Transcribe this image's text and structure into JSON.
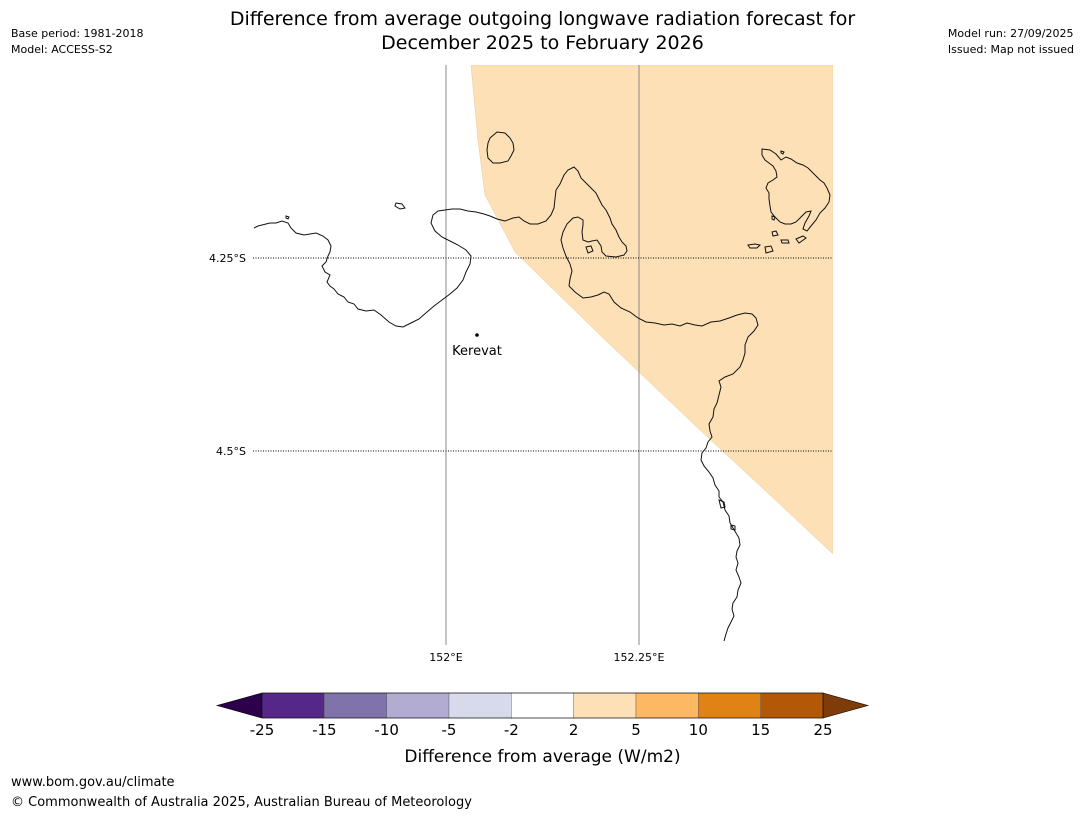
{
  "header": {
    "title_line1": "Difference from average outgoing longwave radiation forecast for",
    "title_line2": "December 2025 to February 2026",
    "base_period": "Base period: 1981-2018",
    "model": "Model: ACCESS-S2",
    "model_run": "Model run: 27/09/2025",
    "issued": "Issued: Map not issued"
  },
  "map": {
    "lat_labels": [
      "4.25°S",
      "4.5°S"
    ],
    "lon_labels": [
      "152°E",
      "152.25°E"
    ],
    "place_label": "Kerevat",
    "shaded_category": "2 to 5",
    "shaded_color": "#fde0b6"
  },
  "colorbar": {
    "title": "Difference from average (W/m2)",
    "ticks": [
      "-25",
      "-15",
      "-10",
      "-5",
      "-2",
      "2",
      "5",
      "10",
      "15",
      "25"
    ],
    "under_color": "#2d004b",
    "over_color": "#7f3b08",
    "bins": [
      {
        "range": "-25 to -15",
        "color": "#542788"
      },
      {
        "range": "-15 to -10",
        "color": "#8073ac"
      },
      {
        "range": "-10 to -5",
        "color": "#b2abd2"
      },
      {
        "range": "-5 to -2",
        "color": "#d8daeb"
      },
      {
        "range": "-2 to 2",
        "color": "#ffffff"
      },
      {
        "range": "2 to 5",
        "color": "#fee0b6"
      },
      {
        "range": "5 to 10",
        "color": "#fdb863"
      },
      {
        "range": "10 to 15",
        "color": "#e08214"
      },
      {
        "range": "15 to 25",
        "color": "#b35806"
      }
    ]
  },
  "footer": {
    "url": "www.bom.gov.au/climate",
    "copyright": "© Commonwealth of Australia 2025, Australian Bureau of Meteorology"
  }
}
